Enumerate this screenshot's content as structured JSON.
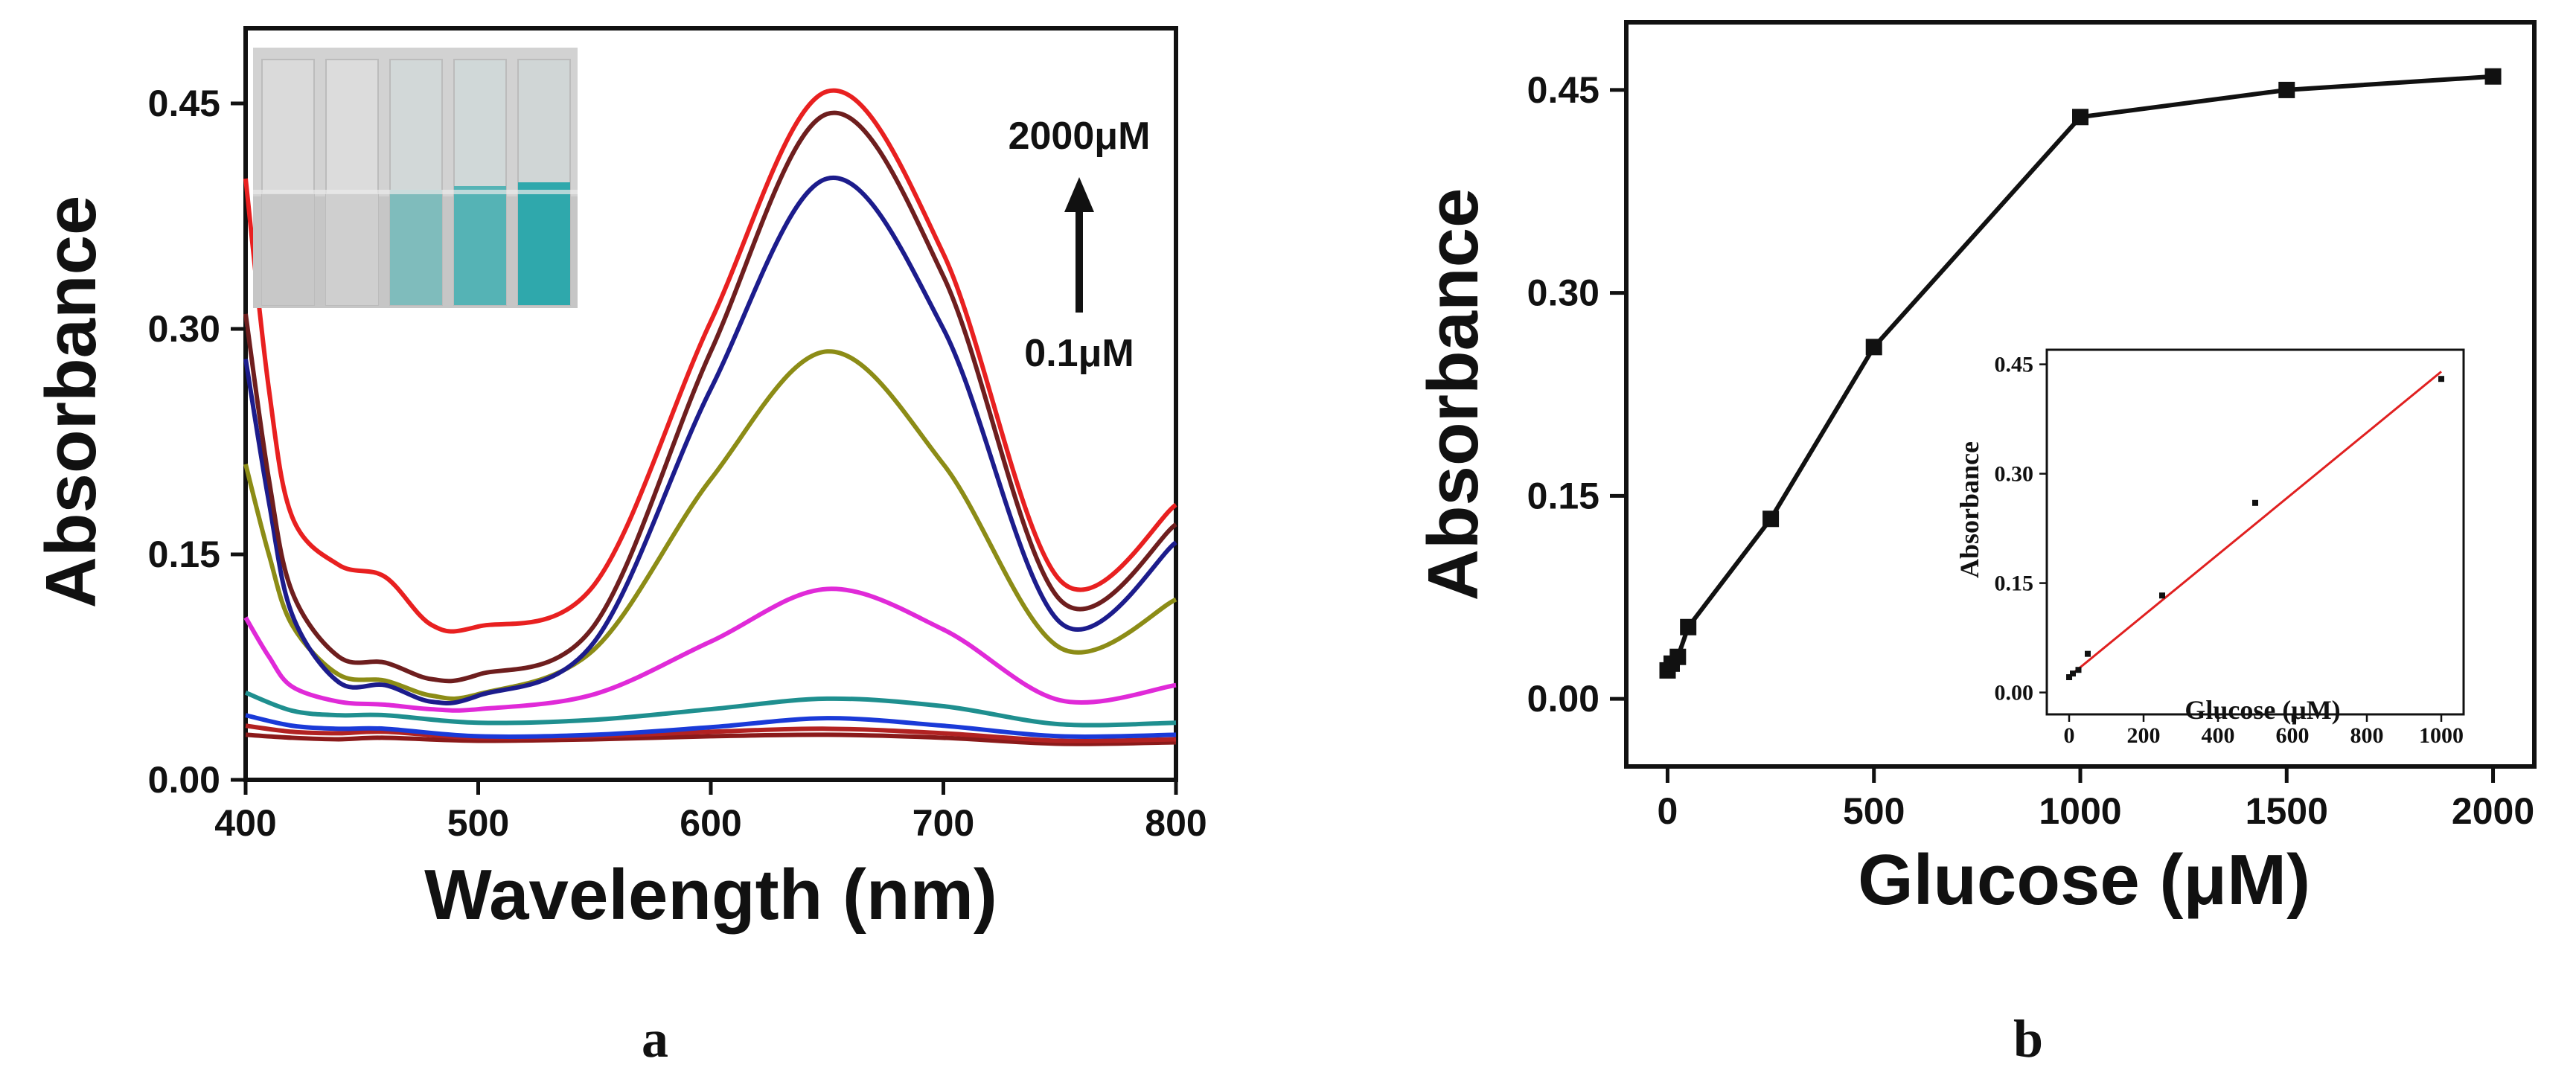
{
  "panels": {
    "a": {
      "label": "a"
    },
    "b": {
      "label": "b"
    }
  },
  "inset_photo": {
    "description_name": "cuvette-photo"
  },
  "annotations": {
    "high": "2000μM",
    "low": "0.1μM"
  },
  "chart_data": [
    {
      "id": "a",
      "type": "line",
      "title": "",
      "xlabel": "Wavelength (nm)",
      "ylabel": "Absorbance",
      "xlim": [
        400,
        800
      ],
      "ylim": [
        0,
        0.5
      ],
      "xticks": [
        400,
        500,
        600,
        700,
        800
      ],
      "yticks": [
        0.0,
        0.15,
        0.3,
        0.45
      ],
      "ytick_labels": [
        "0.00",
        "0.15",
        "0.30",
        "0.45"
      ],
      "xtick_labels": [
        "400",
        "500",
        "600",
        "700",
        "800"
      ],
      "series": [
        {
          "name": "c1",
          "color": "#8b1a1a",
          "points": [
            [
              400,
              0.03
            ],
            [
              420,
              0.028
            ],
            [
              440,
              0.027
            ],
            [
              460,
              0.028
            ],
            [
              500,
              0.026
            ],
            [
              550,
              0.027
            ],
            [
              600,
              0.029
            ],
            [
              650,
              0.03
            ],
            [
              700,
              0.028
            ],
            [
              750,
              0.024
            ],
            [
              800,
              0.025
            ]
          ]
        },
        {
          "name": "c2",
          "color": "#b22222",
          "points": [
            [
              400,
              0.036
            ],
            [
              420,
              0.032
            ],
            [
              440,
              0.031
            ],
            [
              460,
              0.032
            ],
            [
              500,
              0.028
            ],
            [
              550,
              0.029
            ],
            [
              600,
              0.032
            ],
            [
              650,
              0.034
            ],
            [
              700,
              0.031
            ],
            [
              750,
              0.026
            ],
            [
              800,
              0.027
            ]
          ]
        },
        {
          "name": "c3",
          "color": "#1a3ad8",
          "points": [
            [
              400,
              0.043
            ],
            [
              420,
              0.036
            ],
            [
              440,
              0.034
            ],
            [
              460,
              0.034
            ],
            [
              500,
              0.029
            ],
            [
              550,
              0.03
            ],
            [
              600,
              0.035
            ],
            [
              650,
              0.041
            ],
            [
              700,
              0.036
            ],
            [
              750,
              0.029
            ],
            [
              800,
              0.03
            ]
          ]
        },
        {
          "name": "c4",
          "color": "#1f8f8f",
          "points": [
            [
              400,
              0.058
            ],
            [
              420,
              0.046
            ],
            [
              440,
              0.043
            ],
            [
              460,
              0.043
            ],
            [
              500,
              0.038
            ],
            [
              550,
              0.04
            ],
            [
              600,
              0.047
            ],
            [
              650,
              0.054
            ],
            [
              700,
              0.049
            ],
            [
              750,
              0.037
            ],
            [
              800,
              0.038
            ]
          ]
        },
        {
          "name": "c5",
          "color": "#e02ad8",
          "points": [
            [
              400,
              0.108
            ],
            [
              410,
              0.082
            ],
            [
              420,
              0.062
            ],
            [
              440,
              0.052
            ],
            [
              460,
              0.05
            ],
            [
              480,
              0.047
            ],
            [
              500,
              0.047
            ],
            [
              550,
              0.057
            ],
            [
              600,
              0.092
            ],
            [
              650,
              0.127
            ],
            [
              700,
              0.1
            ],
            [
              750,
              0.053
            ],
            [
              800,
              0.063
            ]
          ]
        },
        {
          "name": "c6",
          "color": "#8c8c16",
          "points": [
            [
              400,
              0.21
            ],
            [
              410,
              0.15
            ],
            [
              420,
              0.103
            ],
            [
              440,
              0.07
            ],
            [
              460,
              0.066
            ],
            [
              480,
              0.056
            ],
            [
              500,
              0.057
            ],
            [
              550,
              0.087
            ],
            [
              600,
              0.2
            ],
            [
              650,
              0.285
            ],
            [
              700,
              0.21
            ],
            [
              750,
              0.088
            ],
            [
              800,
              0.12
            ]
          ]
        },
        {
          "name": "c7",
          "color": "#1c1c8c",
          "points": [
            [
              400,
              0.28
            ],
            [
              410,
              0.185
            ],
            [
              420,
              0.11
            ],
            [
              440,
              0.065
            ],
            [
              460,
              0.063
            ],
            [
              480,
              0.052
            ],
            [
              500,
              0.056
            ],
            [
              550,
              0.092
            ],
            [
              600,
              0.26
            ],
            [
              650,
              0.4
            ],
            [
              700,
              0.3
            ],
            [
              750,
              0.105
            ],
            [
              800,
              0.158
            ]
          ]
        },
        {
          "name": "c8",
          "color": "#6e1e1e",
          "points": [
            [
              400,
              0.31
            ],
            [
              410,
              0.2
            ],
            [
              420,
              0.125
            ],
            [
              440,
              0.082
            ],
            [
              460,
              0.078
            ],
            [
              480,
              0.067
            ],
            [
              500,
              0.07
            ],
            [
              550,
              0.103
            ],
            [
              600,
              0.285
            ],
            [
              650,
              0.443
            ],
            [
              700,
              0.335
            ],
            [
              750,
              0.12
            ],
            [
              800,
              0.17
            ]
          ]
        },
        {
          "name": "c9",
          "color": "#e82020",
          "points": [
            [
              400,
              0.4
            ],
            [
              410,
              0.26
            ],
            [
              420,
              0.175
            ],
            [
              440,
              0.143
            ],
            [
              460,
              0.135
            ],
            [
              480,
              0.103
            ],
            [
              500,
              0.102
            ],
            [
              550,
              0.13
            ],
            [
              600,
              0.305
            ],
            [
              650,
              0.458
            ],
            [
              700,
              0.35
            ],
            [
              750,
              0.133
            ],
            [
              800,
              0.183
            ]
          ]
        }
      ]
    },
    {
      "id": "b",
      "type": "line",
      "title": "",
      "xlabel": "Glucose (μM)",
      "ylabel": "Absorbance",
      "xlim": [
        -100,
        2100
      ],
      "ylim": [
        -0.05,
        0.5
      ],
      "xticks": [
        0,
        500,
        1000,
        1500,
        2000
      ],
      "yticks": [
        0.0,
        0.15,
        0.3,
        0.45
      ],
      "ytick_labels": [
        "0.00",
        "0.15",
        "0.30",
        "0.45"
      ],
      "xtick_labels": [
        "0",
        "500",
        "1000",
        "1500",
        "2000"
      ],
      "x": [
        0.1,
        10,
        25,
        50,
        250,
        500,
        1000,
        1500,
        2000
      ],
      "y": [
        0.021,
        0.026,
        0.031,
        0.053,
        0.133,
        0.26,
        0.43,
        0.45,
        0.46
      ],
      "inset": {
        "type": "scatter",
        "xlabel": "Glucose (μM)",
        "ylabel": "Absorbance",
        "xlim": [
          -60,
          1060
        ],
        "ylim": [
          -0.03,
          0.47
        ],
        "xticks": [
          0,
          200,
          400,
          600,
          800,
          1000
        ],
        "xtick_labels": [
          "0",
          "200",
          "400",
          "600",
          "800",
          "1000"
        ],
        "yticks": [
          0.0,
          0.15,
          0.3,
          0.45
        ],
        "ytick_labels": [
          "0.00",
          "0.15",
          "0.30",
          "0.45"
        ],
        "x": [
          0.1,
          10,
          25,
          50,
          250,
          500,
          1000
        ],
        "y": [
          0.021,
          0.026,
          0.031,
          0.053,
          0.133,
          0.26,
          0.43
        ],
        "fit": {
          "color": "#e02020",
          "x": [
            0,
            1000
          ],
          "y": [
            0.022,
            0.44
          ]
        }
      }
    }
  ]
}
